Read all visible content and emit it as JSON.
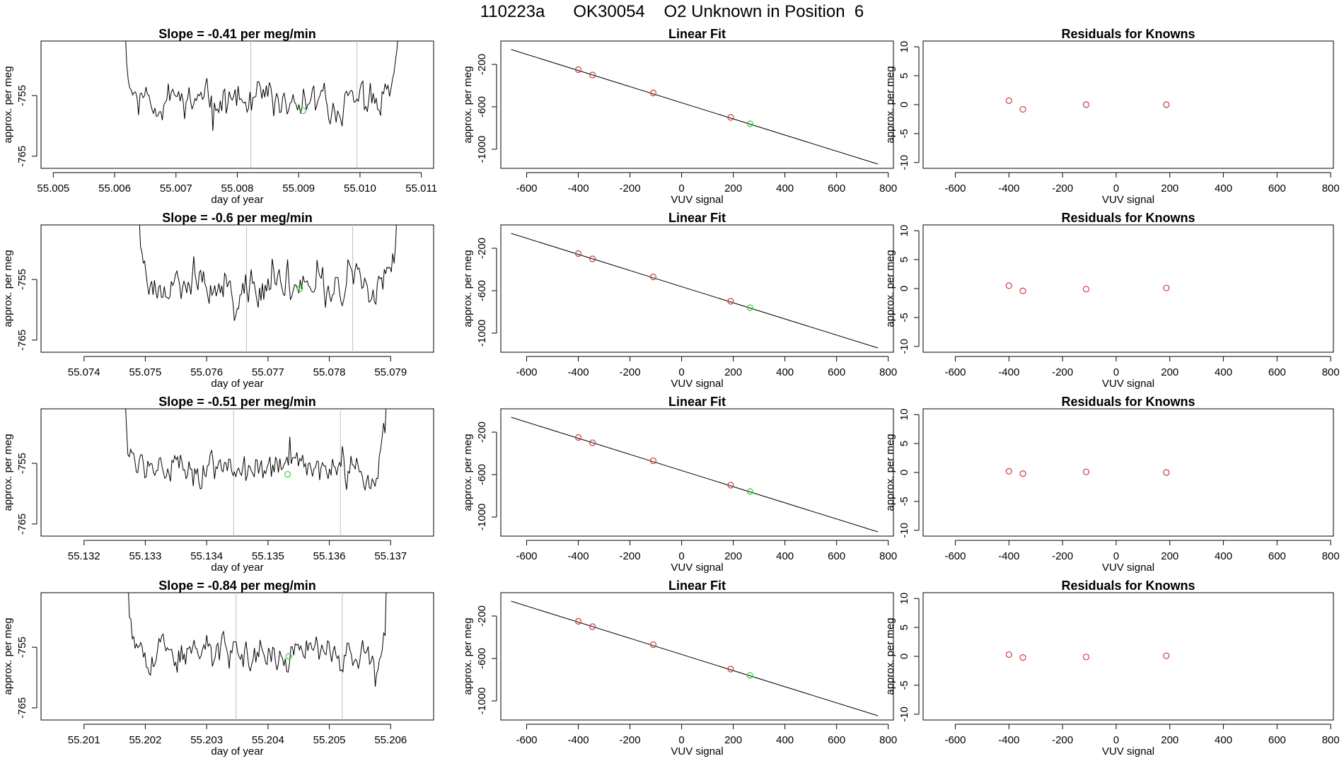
{
  "page": {
    "title": "110223a      OK30054    O2 Unknown in Position  6"
  },
  "colors": {
    "trace": "#000000",
    "marker_line": "#bfbfbf",
    "known_points": "#cd3b3b",
    "unknown_point": "#3ccc3c",
    "fit_line": "#000000"
  },
  "chart_data": [
    {
      "type": "line",
      "panel": "slope-1",
      "title": "Slope =  -0.41  per meg/min",
      "xlabel": "day of year",
      "ylabel": "approx. per meg",
      "xlim": [
        55.0048,
        55.0112
      ],
      "ylim": [
        -767,
        -746
      ],
      "xticks": [
        "55.005",
        "55.006",
        "55.007",
        "55.008",
        "55.009",
        "55.010",
        "55.011"
      ],
      "yticks": [
        "-755",
        "-765"
      ],
      "trace_range": [
        55.0061,
        55.0107
      ],
      "vlines": [
        55.00822,
        55.00995
      ],
      "unknown_point": [
        55.00907,
        -757.5
      ],
      "seed": 11
    },
    {
      "type": "scatter",
      "panel": "fit-1",
      "title": "Linear Fit",
      "xlabel": "VUV signal",
      "ylabel": "approx. per meg",
      "xlim": [
        -700,
        820
      ],
      "ylim": [
        -1180,
        20
      ],
      "xticks": [
        "-600",
        "-400",
        "-200",
        "0",
        "200",
        "400",
        "600",
        "800"
      ],
      "yticks": [
        "-200",
        "-600",
        "-1000"
      ],
      "fit_line": [
        [
          -660,
          -60
        ],
        [
          760,
          -1140
        ]
      ],
      "knowns": [
        [
          -400,
          -250
        ],
        [
          -345,
          -300
        ],
        [
          -110,
          -470
        ],
        [
          190,
          -700
        ]
      ],
      "unknown": [
        265,
        -760
      ]
    },
    {
      "type": "scatter",
      "panel": "residuals-1",
      "title": "Residuals for Knowns",
      "xlabel": "VUV signal",
      "ylabel": "approx. per meg",
      "xlim": [
        -720,
        810
      ],
      "ylim": [
        -11,
        11
      ],
      "xticks": [
        "-600",
        "-400",
        "-200",
        "0",
        "200",
        "400",
        "600",
        "800"
      ],
      "yticks": [
        "10",
        "5",
        "0",
        "-5",
        "-10"
      ],
      "points": [
        [
          -400,
          0.7
        ],
        [
          -348,
          -0.8
        ],
        [
          -112,
          0.0
        ],
        [
          187,
          0.0
        ]
      ]
    },
    {
      "type": "line",
      "panel": "slope-2",
      "title": "Slope =  -0.6  per meg/min",
      "xlabel": "day of year",
      "ylabel": "approx. per meg",
      "xlim": [
        55.0733,
        55.0797
      ],
      "ylim": [
        -767,
        -746
      ],
      "xticks": [
        "55.074",
        "55.075",
        "55.076",
        "55.077",
        "55.078",
        "55.079"
      ],
      "yticks": [
        "-755",
        "-765"
      ],
      "trace_range": [
        55.07483,
        55.07917
      ],
      "vlines": [
        55.07665,
        55.07838
      ],
      "unknown_point": [
        55.07752,
        -756.5
      ],
      "seed": 23
    },
    {
      "type": "scatter",
      "panel": "fit-2",
      "title": "Linear Fit",
      "xlabel": "VUV signal",
      "ylabel": "approx. per meg",
      "xlim": [
        -700,
        820
      ],
      "ylim": [
        -1180,
        20
      ],
      "xticks": [
        "-600",
        "-400",
        "-200",
        "0",
        "200",
        "400",
        "600",
        "800"
      ],
      "yticks": [
        "-200",
        "-600",
        "-1000"
      ],
      "fit_line": [
        [
          -660,
          -60
        ],
        [
          760,
          -1140
        ]
      ],
      "knowns": [
        [
          -400,
          -250
        ],
        [
          -345,
          -300
        ],
        [
          -110,
          -470
        ],
        [
          190,
          -700
        ]
      ],
      "unknown": [
        265,
        -760
      ]
    },
    {
      "type": "scatter",
      "panel": "residuals-2",
      "title": "Residuals for Knowns",
      "xlabel": "VUV signal",
      "ylabel": "approx. per meg",
      "xlim": [
        -720,
        810
      ],
      "ylim": [
        -11,
        11
      ],
      "xticks": [
        "-600",
        "-400",
        "-200",
        "0",
        "200",
        "400",
        "600",
        "800"
      ],
      "yticks": [
        "10",
        "5",
        "0",
        "-5",
        "-10"
      ],
      "points": [
        [
          -400,
          0.5
        ],
        [
          -348,
          -0.4
        ],
        [
          -112,
          -0.1
        ],
        [
          187,
          0.1
        ]
      ]
    },
    {
      "type": "line",
      "panel": "slope-3",
      "title": "Slope =  -0.51  per meg/min",
      "xlabel": "day of year",
      "ylabel": "approx. per meg",
      "xlim": [
        55.1313,
        55.1377
      ],
      "ylim": [
        -767,
        -746
      ],
      "xticks": [
        "55.132",
        "55.133",
        "55.134",
        "55.135",
        "55.136",
        "55.137"
      ],
      "yticks": [
        "-755",
        "-765"
      ],
      "trace_range": [
        55.1326,
        55.137
      ],
      "vlines": [
        55.13444,
        55.13618
      ],
      "unknown_point": [
        55.13532,
        -756.8
      ],
      "seed": 37
    },
    {
      "type": "scatter",
      "panel": "fit-3",
      "title": "Linear Fit",
      "xlabel": "VUV signal",
      "ylabel": "approx. per meg",
      "xlim": [
        -700,
        820
      ],
      "ylim": [
        -1180,
        20
      ],
      "xticks": [
        "-600",
        "-400",
        "-200",
        "0",
        "200",
        "400",
        "600",
        "800"
      ],
      "yticks": [
        "-200",
        "-600",
        "-1000"
      ],
      "fit_line": [
        [
          -660,
          -60
        ],
        [
          760,
          -1140
        ]
      ],
      "knowns": [
        [
          -400,
          -250
        ],
        [
          -345,
          -300
        ],
        [
          -110,
          -470
        ],
        [
          190,
          -700
        ]
      ],
      "unknown": [
        265,
        -760
      ]
    },
    {
      "type": "scatter",
      "panel": "residuals-3",
      "title": "Residuals for Knowns",
      "xlabel": "VUV signal",
      "ylabel": "approx. per meg",
      "xlim": [
        -720,
        810
      ],
      "ylim": [
        -11,
        11
      ],
      "xticks": [
        "-600",
        "-400",
        "-200",
        "0",
        "200",
        "400",
        "600",
        "800"
      ],
      "yticks": [
        "10",
        "5",
        "0",
        "-5",
        "-10"
      ],
      "points": [
        [
          -400,
          0.2
        ],
        [
          -348,
          -0.2
        ],
        [
          -112,
          0.1
        ],
        [
          187,
          0.0
        ]
      ]
    },
    {
      "type": "line",
      "panel": "slope-4",
      "title": "Slope =  -0.84  per meg/min",
      "xlabel": "day of year",
      "ylabel": "approx. per meg",
      "xlim": [
        55.2003,
        55.2067
      ],
      "ylim": [
        -767,
        -746
      ],
      "xticks": [
        "55.201",
        "55.202",
        "55.203",
        "55.204",
        "55.205",
        "55.206"
      ],
      "yticks": [
        "-755",
        "-765"
      ],
      "trace_range": [
        55.20165,
        55.206
      ],
      "vlines": [
        55.20348,
        55.20521
      ],
      "unknown_point": [
        55.20434,
        -756.5
      ],
      "seed": 53
    },
    {
      "type": "scatter",
      "panel": "fit-4",
      "title": "Linear Fit",
      "xlabel": "VUV signal",
      "ylabel": "approx. per meg",
      "xlim": [
        -700,
        820
      ],
      "ylim": [
        -1180,
        20
      ],
      "xticks": [
        "-600",
        "-400",
        "-200",
        "0",
        "200",
        "400",
        "600",
        "800"
      ],
      "yticks": [
        "-200",
        "-600",
        "-1000"
      ],
      "fit_line": [
        [
          -660,
          -60
        ],
        [
          760,
          -1140
        ]
      ],
      "knowns": [
        [
          -400,
          -250
        ],
        [
          -345,
          -300
        ],
        [
          -110,
          -470
        ],
        [
          190,
          -700
        ]
      ],
      "unknown": [
        265,
        -760
      ]
    },
    {
      "type": "scatter",
      "panel": "residuals-4",
      "title": "Residuals for Knowns",
      "xlabel": "VUV signal",
      "ylabel": "approx. per meg",
      "xlim": [
        -720,
        810
      ],
      "ylim": [
        -11,
        11
      ],
      "xticks": [
        "-600",
        "-400",
        "-200",
        "0",
        "200",
        "400",
        "600",
        "800"
      ],
      "yticks": [
        "10",
        "5",
        "0",
        "-5",
        "-10"
      ],
      "points": [
        [
          -400,
          0.3
        ],
        [
          -348,
          -0.2
        ],
        [
          -112,
          -0.1
        ],
        [
          187,
          0.1
        ]
      ]
    }
  ]
}
